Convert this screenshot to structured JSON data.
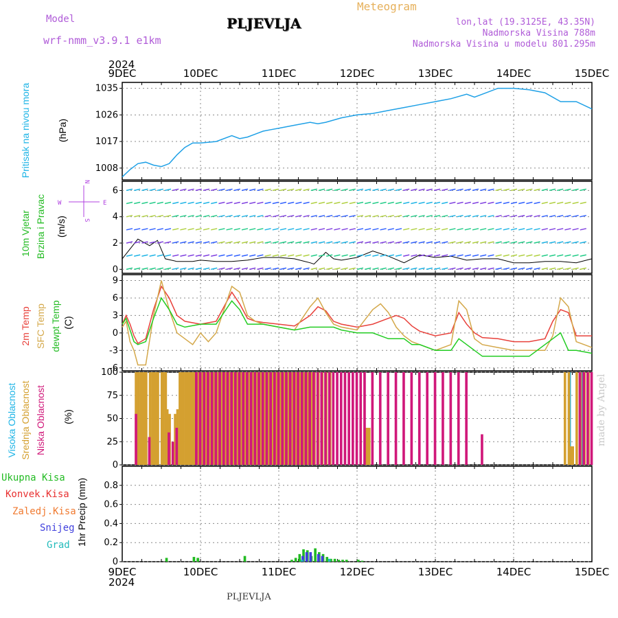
{
  "header": {
    "title": "PLJEVLJA",
    "model_label": "Model",
    "model_name": "wrf-nmm_v3.9.1 e1km",
    "meteogram_label": "Meteogram",
    "lonlat": "lon,lat (19.3125E, 43.35N)",
    "altitude": "Nadmorska Visina 788m",
    "model_altitude": "Nadmorska Visina u modelu 801.295m"
  },
  "footer": {
    "city": "PLJEVLJA",
    "watermark": "made by Angel"
  },
  "axis": {
    "year": "2024",
    "dates": [
      "9DEC",
      "10DEC",
      "11DEC",
      "12DEC",
      "13DEC",
      "14DEC",
      "15DEC"
    ]
  },
  "colors": {
    "pressure": "#1ea0e6",
    "temp2m": "#e8403a",
    "sfc": "#d4a84a",
    "dew": "#22cc22",
    "high_cloud": "#1eb4e6",
    "mid_cloud": "#d4a030",
    "low_cloud": "#d0187a",
    "total_precip": "#22bb22",
    "conv_precip": "#e83030",
    "frz_precip": "#f07a30",
    "snow": "#4040dd",
    "hail": "#22bbbb",
    "wind_compass": "#b040e0"
  },
  "panels": {
    "pressure": {
      "label_lines": [
        "Pritisak na nivou mora"
      ],
      "unit": "(hPa)"
    },
    "wind": {
      "label_lines": [
        "10m Vjetar",
        "Brzina i Pravac"
      ],
      "unit": "(m/s)",
      "compass": {
        "n": "N",
        "s": "S",
        "w": "W",
        "e": "E"
      }
    },
    "temp": {
      "label_lines": [
        "2m Temp",
        "SFC Temp",
        "dewpt Temp"
      ],
      "unit": "(C)"
    },
    "cloud": {
      "label_lines": [
        "Visoka Oblacnost",
        "Srednja Oblacnost",
        "Niska Oblacnost"
      ],
      "unit": "(%)"
    },
    "precip": {
      "legend": [
        "Ukupna Kisa",
        "Konvek.Kisa",
        "Zaledj.Kisa",
        "Snijeg",
        "Grad"
      ],
      "unit": "1hr Precip (mm)"
    }
  },
  "chart_data": [
    {
      "type": "line",
      "name": "pressure",
      "x_range": [
        0,
        6
      ],
      "yticks": [
        1008,
        1017,
        1026,
        1035
      ],
      "ylim": [
        1004,
        1037
      ],
      "series": [
        {
          "name": "Pritisak na nivou mora",
          "x": [
            0,
            0.1,
            0.2,
            0.3,
            0.4,
            0.5,
            0.6,
            0.7,
            0.8,
            0.9,
            1.0,
            1.2,
            1.4,
            1.5,
            1.6,
            1.7,
            1.8,
            1.9,
            2.0,
            2.2,
            2.4,
            2.5,
            2.6,
            2.8,
            3.0,
            3.2,
            3.4,
            3.6,
            3.8,
            4.0,
            4.2,
            4.4,
            4.5,
            4.6,
            4.8,
            5.0,
            5.2,
            5.4,
            5.6,
            5.8,
            6.0
          ],
          "y": [
            1005,
            1007.5,
            1009.5,
            1010,
            1009,
            1008.5,
            1009.5,
            1012.5,
            1015,
            1016.5,
            1016.5,
            1017,
            1019,
            1018,
            1018.5,
            1019.5,
            1020.5,
            1021,
            1021.5,
            1022.5,
            1023.5,
            1023,
            1023.5,
            1025,
            1026,
            1026.5,
            1027.5,
            1028.5,
            1029.5,
            1030.5,
            1031.5,
            1033,
            1032,
            1033,
            1035,
            1035,
            1034.5,
            1033.5,
            1030.5,
            1030.5,
            1028
          ]
        }
      ]
    },
    {
      "type": "line",
      "name": "wind",
      "x_range": [
        0,
        6
      ],
      "yticks": [
        0,
        2,
        4,
        6
      ],
      "ylim": [
        -0.3,
        6.7
      ],
      "series": [
        {
          "name": "10m wind speed",
          "x": [
            0,
            0.2,
            0.35,
            0.45,
            0.55,
            0.7,
            0.9,
            1.0,
            1.2,
            1.4,
            1.6,
            1.8,
            2.0,
            2.2,
            2.4,
            2.45,
            2.6,
            2.7,
            2.8,
            3.0,
            3.2,
            3.4,
            3.6,
            3.8,
            4.0,
            4.2,
            4.4,
            4.6,
            4.8,
            5.0,
            5.2,
            5.4,
            5.6,
            5.8,
            6.0
          ],
          "y": [
            0.8,
            2.3,
            1.8,
            2.2,
            0.8,
            0.6,
            0.6,
            0.7,
            0.6,
            0.6,
            0.7,
            0.9,
            0.9,
            0.8,
            0.5,
            0.4,
            1.3,
            0.8,
            0.7,
            0.9,
            1.4,
            1.0,
            0.5,
            1.1,
            0.9,
            1.0,
            0.7,
            0.8,
            0.8,
            0.5,
            0.5,
            0.6,
            0.6,
            0.5,
            0.8
          ]
        }
      ]
    },
    {
      "type": "line",
      "name": "temperature",
      "x_range": [
        0,
        6
      ],
      "yticks": [
        -6,
        -3,
        0,
        3,
        6,
        9
      ],
      "ylim": [
        -6.5,
        10
      ],
      "series": [
        {
          "name": "2m Temp",
          "x": [
            0,
            0.05,
            0.1,
            0.15,
            0.2,
            0.3,
            0.4,
            0.5,
            0.6,
            0.7,
            0.8,
            1.0,
            1.2,
            1.4,
            1.5,
            1.6,
            1.7,
            1.8,
            2.0,
            2.2,
            2.4,
            2.5,
            2.6,
            2.7,
            2.8,
            3.0,
            3.2,
            3.4,
            3.5,
            3.6,
            3.7,
            3.8,
            4.0,
            4.2,
            4.3,
            4.4,
            4.5,
            4.6,
            4.8,
            5.0,
            5.2,
            5.4,
            5.5,
            5.6,
            5.7,
            5.8,
            6.0
          ],
          "y": [
            1.5,
            3,
            1.5,
            -0.5,
            -1.8,
            -1,
            4,
            8,
            6,
            3,
            2,
            1.5,
            2,
            7,
            5,
            2.5,
            2,
            1.8,
            1.5,
            1.2,
            3,
            4.5,
            3.8,
            2,
            1.5,
            1,
            1.5,
            2.5,
            3,
            2.5,
            1.2,
            0.3,
            -0.5,
            0,
            3.5,
            1.5,
            0,
            -0.8,
            -1,
            -1.5,
            -1.5,
            -1,
            2,
            4,
            3.5,
            -0.5,
            -0.5
          ]
        },
        {
          "name": "SFC Temp",
          "x": [
            0,
            0.05,
            0.1,
            0.15,
            0.2,
            0.3,
            0.4,
            0.5,
            0.6,
            0.7,
            0.8,
            0.9,
            1.0,
            1.1,
            1.2,
            1.3,
            1.4,
            1.5,
            1.6,
            1.7,
            1.8,
            2.0,
            2.2,
            2.4,
            2.5,
            2.6,
            2.7,
            2.8,
            3.0,
            3.2,
            3.3,
            3.4,
            3.5,
            3.6,
            3.7,
            3.8,
            4.0,
            4.2,
            4.3,
            4.4,
            4.5,
            4.6,
            4.8,
            5.0,
            5.2,
            5.4,
            5.5,
            5.6,
            5.7,
            5.8,
            6.0
          ],
          "y": [
            1,
            2,
            -1.5,
            -3,
            -5.5,
            -5.5,
            3,
            9,
            4,
            0,
            -1,
            -2,
            0,
            -1.5,
            0,
            4,
            8,
            7,
            3,
            2,
            1.5,
            1,
            0.5,
            4.5,
            6,
            3.5,
            1.5,
            1,
            0.5,
            4,
            5,
            3.5,
            1,
            -0.5,
            -1.5,
            -2,
            -3,
            -2,
            5.5,
            4,
            -1,
            -2,
            -2.5,
            -3,
            -3,
            -3,
            -0.5,
            6,
            4.5,
            -1.5,
            -2.5
          ]
        },
        {
          "name": "dewpt Temp",
          "x": [
            0,
            0.05,
            0.1,
            0.15,
            0.2,
            0.3,
            0.4,
            0.5,
            0.6,
            0.7,
            0.8,
            1.0,
            1.2,
            1.4,
            1.5,
            1.6,
            1.7,
            1.8,
            2.0,
            2.2,
            2.4,
            2.5,
            2.6,
            2.7,
            2.8,
            3.0,
            3.2,
            3.4,
            3.5,
            3.6,
            3.7,
            3.8,
            4.0,
            4.2,
            4.3,
            4.4,
            4.5,
            4.6,
            4.8,
            5.0,
            5.2,
            5.4,
            5.5,
            5.6,
            5.7,
            5.8,
            6.0
          ],
          "y": [
            1.5,
            2.5,
            0.5,
            -1.5,
            -2,
            -1.5,
            2.5,
            6,
            4,
            1.5,
            1,
            1.5,
            1.5,
            5.5,
            4,
            1.5,
            1.5,
            1.5,
            1,
            0.5,
            1,
            1,
            1,
            1,
            0.5,
            0,
            0,
            -1,
            -1,
            -1,
            -2,
            -2,
            -3,
            -3,
            -1,
            -2,
            -3,
            -4,
            -4,
            -4,
            -4,
            -2,
            -1,
            0,
            -3,
            -3,
            -3.5
          ]
        }
      ]
    },
    {
      "type": "bar",
      "name": "cloud cover",
      "x_range": [
        0,
        6
      ],
      "yticks": [
        0,
        25,
        50,
        75,
        100
      ],
      "ylim": [
        0,
        100
      ],
      "series": [
        {
          "name": "Visoka Oblacnost",
          "x": [
            0.1,
            0.8,
            1.55,
            1.75,
            4.4,
            5.7,
            5.85
          ],
          "y": [
            0,
            0,
            55,
            55,
            0,
            100,
            100
          ]
        },
        {
          "name": "Srednja Oblacnost",
          "x": [
            0.12,
            0.15,
            0.18,
            0.2,
            0.23,
            0.25,
            0.3,
            0.33,
            0.35,
            0.38,
            0.4,
            0.45,
            0.47,
            0.5,
            0.52,
            0.55,
            0.6,
            0.62,
            0.65,
            0.68,
            0.7,
            0.72,
            0.75,
            0.78,
            0.8,
            0.82,
            0.85,
            0.88,
            0.9,
            0.92,
            0.95,
            0.98,
            1.0,
            1.02,
            1.05,
            1.08,
            1.1,
            1.12,
            1.15,
            1.18,
            1.2,
            1.22,
            1.25,
            1.28,
            1.3,
            1.32,
            1.35,
            1.38,
            1.4,
            1.42,
            1.45,
            1.48,
            1.5,
            1.52,
            1.55,
            1.58,
            1.6,
            1.62,
            1.65,
            1.68,
            1.7,
            1.72,
            1.75,
            1.78,
            1.8,
            1.82,
            1.85,
            1.88,
            1.9,
            1.92,
            1.95,
            1.98,
            2.0,
            2.02,
            2.05,
            2.08,
            2.1,
            2.12,
            2.15,
            2.18,
            2.2,
            2.22,
            2.25,
            2.28,
            2.3,
            2.32,
            2.35,
            2.38,
            2.4,
            2.45,
            2.5,
            2.55,
            2.6,
            3.05,
            3.07,
            3.1,
            5.6,
            5.65,
            5.68,
            5.7,
            5.75,
            5.8,
            5.85,
            5.9
          ],
          "y": [
            100,
            100,
            100,
            100,
            100,
            100,
            100,
            100,
            100,
            100,
            100,
            100,
            100,
            100,
            60,
            55,
            20,
            55,
            60,
            100,
            100,
            100,
            100,
            100,
            100,
            100,
            100,
            100,
            100,
            100,
            100,
            100,
            100,
            100,
            100,
            100,
            100,
            100,
            100,
            100,
            100,
            100,
            100,
            100,
            100,
            100,
            100,
            100,
            100,
            100,
            100,
            100,
            100,
            100,
            100,
            100,
            100,
            100,
            100,
            100,
            100,
            100,
            100,
            100,
            100,
            100,
            100,
            100,
            100,
            100,
            100,
            100,
            100,
            100,
            100,
            100,
            100,
            100,
            100,
            100,
            100,
            100,
            100,
            100,
            100,
            100,
            100,
            100,
            100,
            100,
            100,
            100,
            100,
            35,
            40,
            40,
            100,
            100,
            20,
            20,
            100,
            100,
            100,
            100
          ]
        },
        {
          "name": "Niska Oblacnost",
          "x": [
            0.08,
            0.25,
            0.5,
            0.55,
            0.6,
            0.85,
            0.9,
            0.95,
            1.0,
            1.05,
            1.1,
            1.15,
            1.2,
            1.25,
            1.3,
            1.35,
            1.4,
            1.45,
            1.5,
            1.55,
            1.6,
            1.65,
            1.7,
            1.75,
            1.8,
            1.85,
            1.9,
            1.95,
            2.0,
            2.05,
            2.1,
            2.15,
            2.2,
            2.25,
            2.3,
            2.35,
            2.4,
            2.45,
            2.5,
            2.55,
            2.6,
            2.65,
            2.7,
            2.75,
            2.8,
            2.85,
            2.9,
            2.95,
            3.0,
            3.1,
            3.2,
            3.3,
            3.4,
            3.5,
            3.6,
            3.7,
            3.8,
            3.9,
            4.0,
            4.1,
            4.2,
            4.3,
            4.5,
            5.75,
            5.8,
            5.85,
            5.9
          ],
          "y": [
            55,
            30,
            35,
            25,
            40,
            100,
            100,
            100,
            100,
            100,
            100,
            100,
            100,
            100,
            100,
            100,
            100,
            100,
            100,
            100,
            100,
            100,
            100,
            100,
            100,
            100,
            100,
            100,
            100,
            100,
            100,
            100,
            100,
            100,
            100,
            100,
            100,
            100,
            100,
            100,
            100,
            100,
            100,
            100,
            100,
            100,
            100,
            100,
            100,
            100,
            100,
            100,
            100,
            100,
            100,
            100,
            100,
            100,
            100,
            100,
            100,
            100,
            33,
            100,
            100,
            100,
            100
          ]
        }
      ]
    },
    {
      "type": "bar",
      "name": "precipitation",
      "x_range": [
        0,
        6
      ],
      "yticks": [
        0,
        0.2,
        0.4,
        0.6,
        0.8
      ],
      "ylim": [
        0,
        1.0
      ],
      "series": [
        {
          "name": "Ukupna Kisa",
          "x": [
            0.55,
            0.9,
            0.95,
            1.55,
            2.15,
            2.2,
            2.25,
            2.3,
            2.35,
            2.4,
            2.45,
            2.5,
            2.55,
            2.6,
            2.65,
            2.7,
            2.75,
            2.8,
            2.85,
            3.0,
            3.05
          ],
          "y": [
            0.04,
            0.05,
            0.04,
            0.06,
            0.02,
            0.04,
            0.08,
            0.13,
            0.12,
            0.06,
            0.14,
            0.1,
            0.08,
            0.05,
            0.03,
            0.03,
            0.02,
            0.02,
            0.02,
            0.02,
            0.01
          ]
        },
        {
          "name": "Snijeg",
          "x": [
            2.25,
            2.3,
            2.35,
            2.45,
            2.5
          ],
          "y": [
            0.06,
            0.1,
            0.1,
            0.08,
            0.06
          ]
        },
        {
          "name": "Grad",
          "x": [
            2.2,
            2.55
          ],
          "y": [
            0.02,
            0.03
          ]
        }
      ]
    }
  ]
}
